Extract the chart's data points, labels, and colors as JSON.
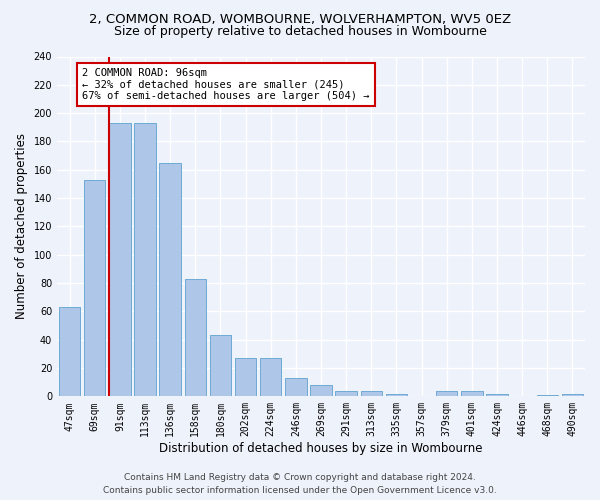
{
  "title_line1": "2, COMMON ROAD, WOMBOURNE, WOLVERHAMPTON, WV5 0EZ",
  "title_line2": "Size of property relative to detached houses in Wombourne",
  "xlabel": "Distribution of detached houses by size in Wombourne",
  "ylabel": "Number of detached properties",
  "categories": [
    "47sqm",
    "69sqm",
    "91sqm",
    "113sqm",
    "136sqm",
    "158sqm",
    "180sqm",
    "202sqm",
    "224sqm",
    "246sqm",
    "269sqm",
    "291sqm",
    "313sqm",
    "335sqm",
    "357sqm",
    "379sqm",
    "401sqm",
    "424sqm",
    "446sqm",
    "468sqm",
    "490sqm"
  ],
  "values": [
    63,
    153,
    193,
    193,
    165,
    83,
    43,
    27,
    27,
    13,
    8,
    4,
    4,
    2,
    0,
    4,
    4,
    2,
    0,
    1,
    2
  ],
  "bar_color": "#aec6e8",
  "bar_edge_color": "#6daad4",
  "highlight_bar_index": 2,
  "highlight_line_color": "#cc0000",
  "annotation_text": "2 COMMON ROAD: 96sqm\n← 32% of detached houses are smaller (245)\n67% of semi-detached houses are larger (504) →",
  "annotation_box_color": "#ffffff",
  "annotation_box_edge": "#cc0000",
  "ylim": [
    0,
    240
  ],
  "yticks": [
    0,
    20,
    40,
    60,
    80,
    100,
    120,
    140,
    160,
    180,
    200,
    220,
    240
  ],
  "footer_line1": "Contains HM Land Registry data © Crown copyright and database right 2024.",
  "footer_line2": "Contains public sector information licensed under the Open Government Licence v3.0.",
  "background_color": "#eef2fa",
  "grid_color": "#ffffff",
  "title_fontsize": 9.5,
  "subtitle_fontsize": 9,
  "axis_label_fontsize": 8.5,
  "tick_fontsize": 7,
  "footer_fontsize": 6.5,
  "annotation_fontsize": 7.5
}
